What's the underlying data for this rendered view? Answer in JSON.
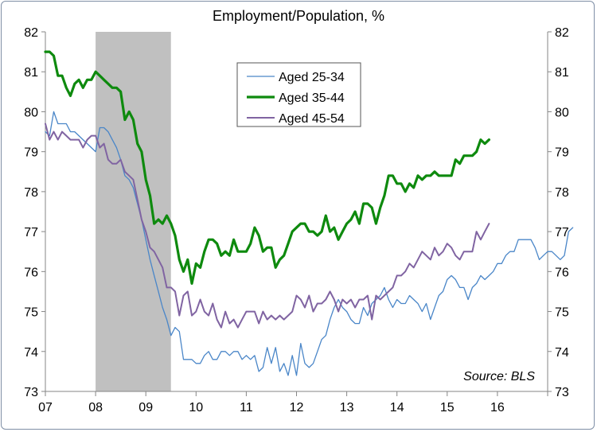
{
  "chart_data": {
    "type": "line",
    "title": "Employment/Population, %",
    "source": "Source: BLS",
    "xlabel": "",
    "ylabel": "",
    "ylim": [
      73,
      82
    ],
    "yticks": [
      73,
      74,
      75,
      76,
      77,
      78,
      79,
      80,
      81,
      82
    ],
    "ytick_labels_right": true,
    "x_start": 2007.0,
    "x_end": 2017.0,
    "xticks": [
      2007,
      2008,
      2009,
      2010,
      2011,
      2012,
      2013,
      2014,
      2015,
      2016
    ],
    "xtick_labels": [
      "07",
      "08",
      "09",
      "10",
      "11",
      "12",
      "13",
      "14",
      "15",
      "16"
    ],
    "recession_shading": {
      "from": 2008.0,
      "to": 2009.5,
      "color": "#c0c0c0"
    },
    "legend_position": "top-center",
    "series": [
      {
        "name": "Aged 25-34",
        "color": "#4a86c8",
        "stroke_width": 1.3,
        "start": 2007.0,
        "step_months": 1,
        "values": [
          79.5,
          79.4,
          80.0,
          79.7,
          79.7,
          79.7,
          79.5,
          79.5,
          79.4,
          79.3,
          79.2,
          79.1,
          79.0,
          79.6,
          79.6,
          79.5,
          79.3,
          79.1,
          78.8,
          78.4,
          78.3,
          78.1,
          77.7,
          77.3,
          76.8,
          76.3,
          75.9,
          75.5,
          75.1,
          74.8,
          74.4,
          74.6,
          74.5,
          73.8,
          73.8,
          73.8,
          73.7,
          73.7,
          73.9,
          74.0,
          73.8,
          73.8,
          74.0,
          74.0,
          73.9,
          74.0,
          74.0,
          73.8,
          73.9,
          73.8,
          73.9,
          73.5,
          73.6,
          74.1,
          73.7,
          74.1,
          73.5,
          73.7,
          73.4,
          73.9,
          73.4,
          74.2,
          73.7,
          73.6,
          73.7,
          74.0,
          74.3,
          74.4,
          74.8,
          75.1,
          75.3,
          75.1,
          75.0,
          74.8,
          74.7,
          74.7,
          75.1,
          74.9,
          75.2,
          75.3,
          75.4,
          75.6,
          75.3,
          75.1,
          75.3,
          75.2,
          75.2,
          75.4,
          75.3,
          75.2,
          75.0,
          75.2,
          74.8,
          75.1,
          75.4,
          75.5,
          75.8,
          75.9,
          75.8,
          75.6,
          75.6,
          75.3,
          75.6,
          75.7,
          75.9,
          75.8,
          75.9,
          76.0,
          76.2,
          76.2,
          76.4,
          76.5,
          76.5,
          76.8,
          76.8,
          76.8,
          76.8,
          76.6,
          76.3,
          76.4,
          76.5,
          76.5,
          76.4,
          76.3,
          76.4,
          77.0,
          77.1
        ]
      },
      {
        "name": "Aged 35-44",
        "color": "#0e8a0e",
        "stroke_width": 3.2,
        "start": 2007.0,
        "step_months": 1,
        "values": [
          81.5,
          81.5,
          81.4,
          80.9,
          80.9,
          80.6,
          80.4,
          80.7,
          80.8,
          80.6,
          80.8,
          80.8,
          81.0,
          80.9,
          80.8,
          80.7,
          80.6,
          80.6,
          80.5,
          79.8,
          80.0,
          79.8,
          79.2,
          79.0,
          78.3,
          77.9,
          77.2,
          77.3,
          77.2,
          77.4,
          77.2,
          76.9,
          76.3,
          76.0,
          76.3,
          75.7,
          76.2,
          76.1,
          76.5,
          76.8,
          76.8,
          76.7,
          76.4,
          76.5,
          76.4,
          76.8,
          76.5,
          76.5,
          76.5,
          76.7,
          77.1,
          76.9,
          76.5,
          76.6,
          76.6,
          76.1,
          76.3,
          76.4,
          76.7,
          77.0,
          77.1,
          77.2,
          77.2,
          77.0,
          77.0,
          76.9,
          77.0,
          77.4,
          77.0,
          77.1,
          76.8,
          77.0,
          77.2,
          77.3,
          77.5,
          77.2,
          77.7,
          77.7,
          77.6,
          77.2,
          77.6,
          77.9,
          78.4,
          78.4,
          78.2,
          78.2,
          78.0,
          78.2,
          78.1,
          78.4,
          78.3,
          78.4,
          78.4,
          78.5,
          78.4,
          78.4,
          78.4,
          78.4,
          78.8,
          78.7,
          78.9,
          78.9,
          78.9,
          79.0,
          79.3,
          79.2,
          79.3
        ]
      },
      {
        "name": "Aged 45-54",
        "color": "#8064a2",
        "stroke_width": 2.0,
        "start": 2007.0,
        "step_months": 1,
        "values": [
          79.7,
          79.3,
          79.5,
          79.3,
          79.5,
          79.4,
          79.3,
          79.3,
          79.3,
          79.1,
          79.3,
          79.4,
          79.4,
          79.1,
          79.2,
          78.8,
          78.7,
          78.7,
          78.8,
          78.5,
          78.4,
          78.3,
          77.8,
          77.3,
          77.0,
          76.6,
          76.5,
          76.3,
          76.1,
          75.6,
          75.6,
          75.5,
          74.9,
          75.4,
          75.5,
          74.9,
          75.0,
          75.3,
          75.0,
          74.9,
          75.2,
          74.8,
          74.6,
          75.0,
          74.7,
          74.8,
          74.6,
          74.8,
          75.0,
          75.0,
          75.0,
          74.7,
          75.0,
          74.8,
          74.9,
          74.8,
          74.9,
          74.8,
          74.9,
          75.0,
          75.4,
          75.3,
          75.1,
          75.4,
          75.0,
          75.2,
          75.2,
          75.3,
          75.5,
          75.3,
          75.0,
          75.3,
          75.2,
          75.3,
          75.1,
          75.3,
          75.3,
          75.4,
          74.8,
          75.4,
          75.3,
          75.4,
          75.5,
          75.6,
          75.9,
          75.9,
          76.0,
          76.2,
          76.1,
          76.3,
          76.5,
          76.4,
          76.3,
          76.6,
          76.4,
          76.5,
          76.7,
          76.6,
          76.4,
          76.3,
          76.5,
          76.5,
          76.5,
          77.0,
          76.8,
          77.0,
          77.2
        ]
      }
    ]
  }
}
